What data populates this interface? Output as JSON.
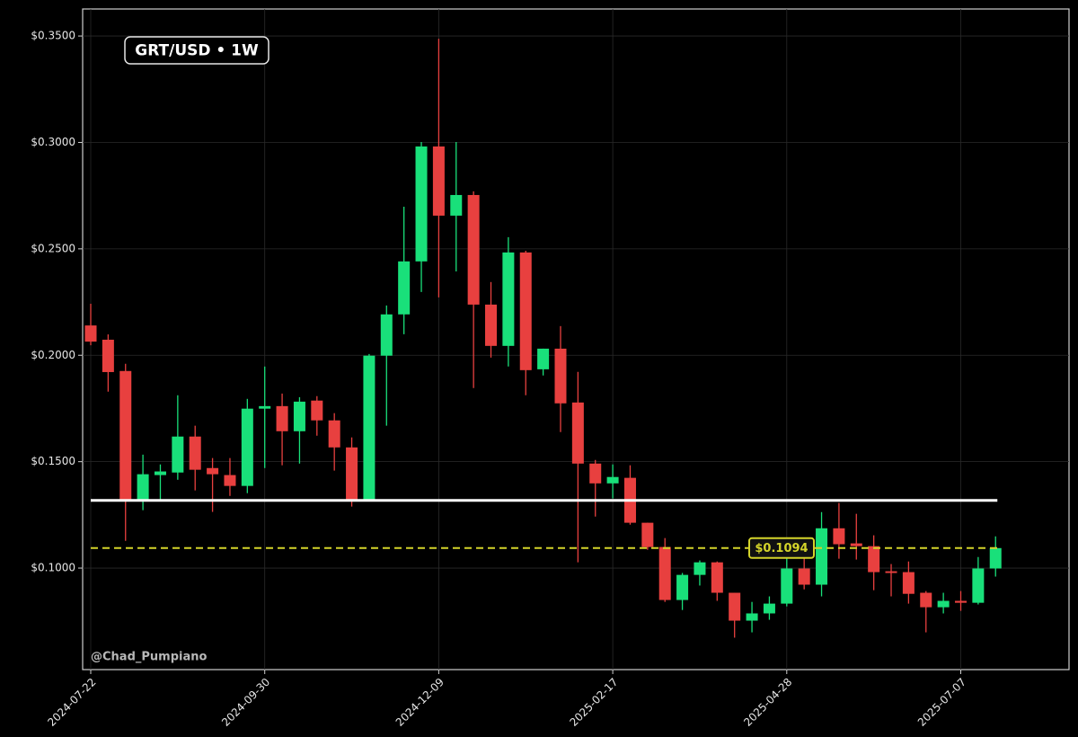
{
  "chart_data": {
    "type": "candlestick",
    "title": "GRT/USD • 1W",
    "watermark": "@Chad_Pumpiano",
    "categories": [
      "2024-07-22",
      null,
      null,
      null,
      null,
      null,
      null,
      null,
      null,
      null,
      "2024-09-30",
      null,
      null,
      null,
      null,
      null,
      null,
      null,
      null,
      null,
      "2024-12-09",
      null,
      null,
      null,
      null,
      null,
      null,
      null,
      null,
      null,
      "2025-02-17",
      null,
      null,
      null,
      null,
      null,
      null,
      null,
      null,
      null,
      "2025-04-28",
      null,
      null,
      null,
      null,
      null,
      null,
      null,
      null,
      null,
      "2025-07-07",
      null,
      null
    ],
    "open": [
      0.214,
      0.2073,
      0.1926,
      0.1318,
      0.1437,
      0.1449,
      0.1618,
      0.147,
      0.1437,
      0.1386,
      0.1749,
      0.1761,
      0.1643,
      0.1787,
      0.1694,
      0.1567,
      0.1318,
      0.1998,
      0.2192,
      0.2441,
      0.2981,
      0.2656,
      0.2753,
      0.2238,
      0.2044,
      0.2483,
      0.1934,
      0.2031,
      0.1778,
      0.1491,
      0.1398,
      0.1424,
      0.1213,
      0.1099,
      0.085,
      0.0968,
      0.1027,
      0.0884,
      0.0753,
      0.0787,
      0.0833,
      0.0998,
      0.0922,
      0.1187,
      0.1116,
      0.1103,
      0.0985,
      0.0981,
      0.0884,
      0.0816,
      0.0846,
      0.0837,
      0.0998
    ],
    "high": [
      0.2242,
      0.2098,
      0.196,
      0.1533,
      0.1487,
      0.1812,
      0.1669,
      0.1517,
      0.1517,
      0.1795,
      0.1947,
      0.182,
      0.1803,
      0.1808,
      0.1728,
      0.1614,
      0.2006,
      0.2234,
      0.2698,
      0.3002,
      0.3487,
      0.3002,
      0.277,
      0.2344,
      0.2555,
      0.2491,
      0.2031,
      0.2137,
      0.1922,
      0.1508,
      0.1487,
      0.1483,
      0.1213,
      0.1141,
      0.0977,
      0.1036,
      0.1031,
      0.0884,
      0.0841,
      0.0867,
      0.1052,
      0.1052,
      0.1263,
      0.1306,
      0.1255,
      0.1154,
      0.1019,
      0.1031,
      0.0892,
      0.0884,
      0.0892,
      0.1052,
      0.1149
    ],
    "low": [
      0.2047,
      0.1829,
      0.1128,
      0.1272,
      0.1322,
      0.1415,
      0.1365,
      0.1264,
      0.1339,
      0.1352,
      0.147,
      0.1483,
      0.1491,
      0.1622,
      0.1458,
      0.1289,
      0.1318,
      0.1669,
      0.2099,
      0.2297,
      0.2272,
      0.2394,
      0.1846,
      0.1989,
      0.1947,
      0.1812,
      0.1905,
      0.1639,
      0.1027,
      0.1242,
      0.1327,
      0.1204,
      0.1086,
      0.0841,
      0.0803,
      0.0918,
      0.0846,
      0.0673,
      0.0698,
      0.0757,
      0.082,
      0.09,
      0.0867,
      0.1044,
      0.104,
      0.0896,
      0.0867,
      0.0833,
      0.0698,
      0.0787,
      0.0799,
      0.0829,
      0.096
    ],
    "close": [
      0.2064,
      0.1921,
      0.1318,
      0.1441,
      0.1454,
      0.1618,
      0.1462,
      0.1441,
      0.1386,
      0.1749,
      0.1761,
      0.1643,
      0.1782,
      0.1694,
      0.1567,
      0.1318,
      0.1998,
      0.2192,
      0.2441,
      0.2981,
      0.2656,
      0.2753,
      0.2238,
      0.2044,
      0.2483,
      0.193,
      0.2031,
      0.1774,
      0.1491,
      0.1398,
      0.1428,
      0.1213,
      0.1099,
      0.085,
      0.0968,
      0.1027,
      0.0884,
      0.0753,
      0.0787,
      0.0833,
      0.0998,
      0.0922,
      0.1187,
      0.1112,
      0.1103,
      0.0981,
      0.0977,
      0.0879,
      0.0816,
      0.0846,
      0.0837,
      0.0998,
      0.1094
    ],
    "up_color": "#19e07a",
    "down_color": "#e8403f",
    "ylim": [
      0.0523,
      0.3627
    ],
    "yticks": [
      {
        "value": 0.1,
        "label": "$0.1000"
      },
      {
        "value": 0.15,
        "label": "$0.1500"
      },
      {
        "value": 0.2,
        "label": "$0.2000"
      },
      {
        "value": 0.25,
        "label": "$0.2500"
      },
      {
        "value": 0.3,
        "label": "$0.3000"
      },
      {
        "value": 0.35,
        "label": "$0.3500"
      }
    ],
    "grid": true,
    "levels": [
      {
        "value": 0.1318,
        "color": "#ffffff",
        "style": "solid"
      },
      {
        "value": 0.1094,
        "label": "$0.1094",
        "color": "#d4d42a",
        "style": "dashed"
      }
    ]
  }
}
